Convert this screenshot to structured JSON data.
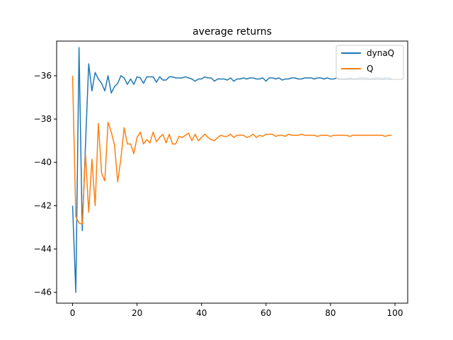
{
  "chart_data": {
    "type": "line",
    "title": "average returns",
    "xlabel": "",
    "ylabel": "",
    "xlim": [
      -4.95,
      103.95
    ],
    "ylim": [
      -46.5,
      -34.4
    ],
    "xticks": [
      0,
      20,
      40,
      60,
      80,
      100
    ],
    "yticks": [
      -46,
      -44,
      -42,
      -40,
      -38,
      -36
    ],
    "grid": false,
    "legend_position": "upper right",
    "series": [
      {
        "name": "dynaQ",
        "color": "#1f77b4",
        "values": [
          -42.0,
          -46.0,
          -34.7,
          -43.15,
          -39.2,
          -35.45,
          -36.7,
          -35.85,
          -36.15,
          -36.35,
          -36.7,
          -36.0,
          -36.8,
          -36.5,
          -36.35,
          -36.0,
          -36.1,
          -36.4,
          -36.15,
          -36.4,
          -36.05,
          -36.1,
          -36.35,
          -36.05,
          -36.05,
          -36.05,
          -36.3,
          -36.05,
          -36.2,
          -36.2,
          -36.05,
          -36.05,
          -36.1,
          -36.1,
          -36.1,
          -36.05,
          -36.1,
          -36.15,
          -36.25,
          -36.15,
          -36.15,
          -36.05,
          -36.1,
          -36.1,
          -36.25,
          -36.15,
          -36.15,
          -36.15,
          -36.2,
          -36.1,
          -36.25,
          -36.15,
          -36.15,
          -36.1,
          -36.15,
          -36.1,
          -36.1,
          -36.15,
          -36.15,
          -36.1,
          -36.25,
          -36.1,
          -36.1,
          -36.15,
          -36.1,
          -36.2,
          -36.15,
          -36.15,
          -36.1,
          -36.1,
          -36.15,
          -36.15,
          -36.1,
          -36.1,
          -36.1,
          -36.15,
          -36.1,
          -36.1,
          -36.15,
          -36.1,
          -36.15,
          -36.15,
          -36.1,
          -36.15,
          -36.15,
          -36.15,
          -36.1,
          -36.15,
          -36.15,
          -36.1,
          -36.1,
          -36.1,
          -36.15,
          -36.15,
          -36.1,
          -36.1,
          -36.15,
          -36.1,
          -36.1,
          -36.15
        ]
      },
      {
        "name": "Q",
        "color": "#ff7f0e",
        "values": [
          -36.0,
          -42.5,
          -42.8,
          -42.85,
          -39.6,
          -42.3,
          -39.85,
          -42.0,
          -38.2,
          -40.5,
          -40.85,
          -38.15,
          -38.6,
          -39.2,
          -40.9,
          -39.8,
          -38.4,
          -39.15,
          -39.15,
          -39.6,
          -38.85,
          -38.6,
          -39.15,
          -38.95,
          -39.1,
          -38.6,
          -39.05,
          -38.85,
          -38.7,
          -39.1,
          -38.7,
          -39.15,
          -39.15,
          -38.8,
          -38.85,
          -38.75,
          -38.65,
          -39.0,
          -38.7,
          -39.0,
          -38.85,
          -38.7,
          -38.85,
          -38.95,
          -39.0,
          -38.85,
          -38.75,
          -38.8,
          -38.8,
          -38.7,
          -38.85,
          -38.75,
          -38.75,
          -38.75,
          -38.85,
          -38.8,
          -38.7,
          -38.85,
          -38.75,
          -38.8,
          -38.7,
          -38.7,
          -38.7,
          -38.8,
          -38.75,
          -38.75,
          -38.8,
          -38.7,
          -38.75,
          -38.75,
          -38.75,
          -38.7,
          -38.75,
          -38.75,
          -38.75,
          -38.75,
          -38.8,
          -38.75,
          -38.75,
          -38.75,
          -38.8,
          -38.75,
          -38.75,
          -38.75,
          -38.75,
          -38.75,
          -38.8,
          -38.75,
          -38.75,
          -38.75,
          -38.75,
          -38.75,
          -38.75,
          -38.75,
          -38.75,
          -38.75,
          -38.75,
          -38.8,
          -38.75,
          -38.75
        ]
      }
    ]
  }
}
